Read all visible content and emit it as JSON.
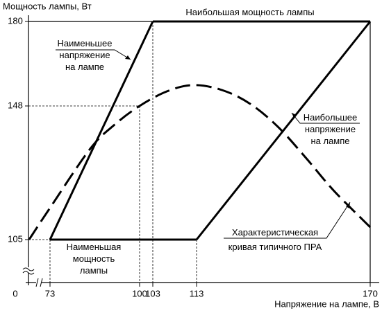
{
  "chart_data": {
    "type": "line",
    "y_label": "Мощность лампы, Вт",
    "x_label": "Напряжение на лампе, В",
    "ylim": [
      0,
      180
    ],
    "yticks": [
      0,
      105,
      148,
      180
    ],
    "xticks": [
      73,
      100,
      103,
      113,
      170
    ],
    "series": [
      {
        "name": "Наибольшая мощность лампы",
        "color": "#000000",
        "line_style": "solid",
        "x": [
          103,
          170
        ],
        "values": [
          180,
          180
        ]
      },
      {
        "name": "Наименьшая\nмощность\nлампы",
        "color": "#000000",
        "line_style": "solid",
        "x": [
          73,
          113
        ],
        "values": [
          105,
          105
        ]
      },
      {
        "name": "Наименьшее\nнапряжение\nна лампе",
        "color": "#000000",
        "line_style": "solid",
        "x": [
          73,
          103
        ],
        "values": [
          105,
          180
        ]
      },
      {
        "name": "Наибольшее\nнапряжение\nна лампе",
        "color": "#000000",
        "line_style": "solid",
        "x": [
          113,
          170
        ],
        "values": [
          105,
          180
        ]
      },
      {
        "name": "Характеристическая\nкривая типичного ПРА",
        "color": "#000000",
        "line_style": "dashed",
        "x": [
          66.7,
          73,
          85.1,
          92.5,
          100,
          106.2,
          112.2,
          121.4,
          130.6,
          139.7,
          148.9,
          158,
          170
        ],
        "values": [
          105,
          115.2,
          134.2,
          142,
          148,
          153.5,
          155.9,
          154,
          148.8,
          141.3,
          131.3,
          120.8,
          109
        ]
      }
    ]
  }
}
